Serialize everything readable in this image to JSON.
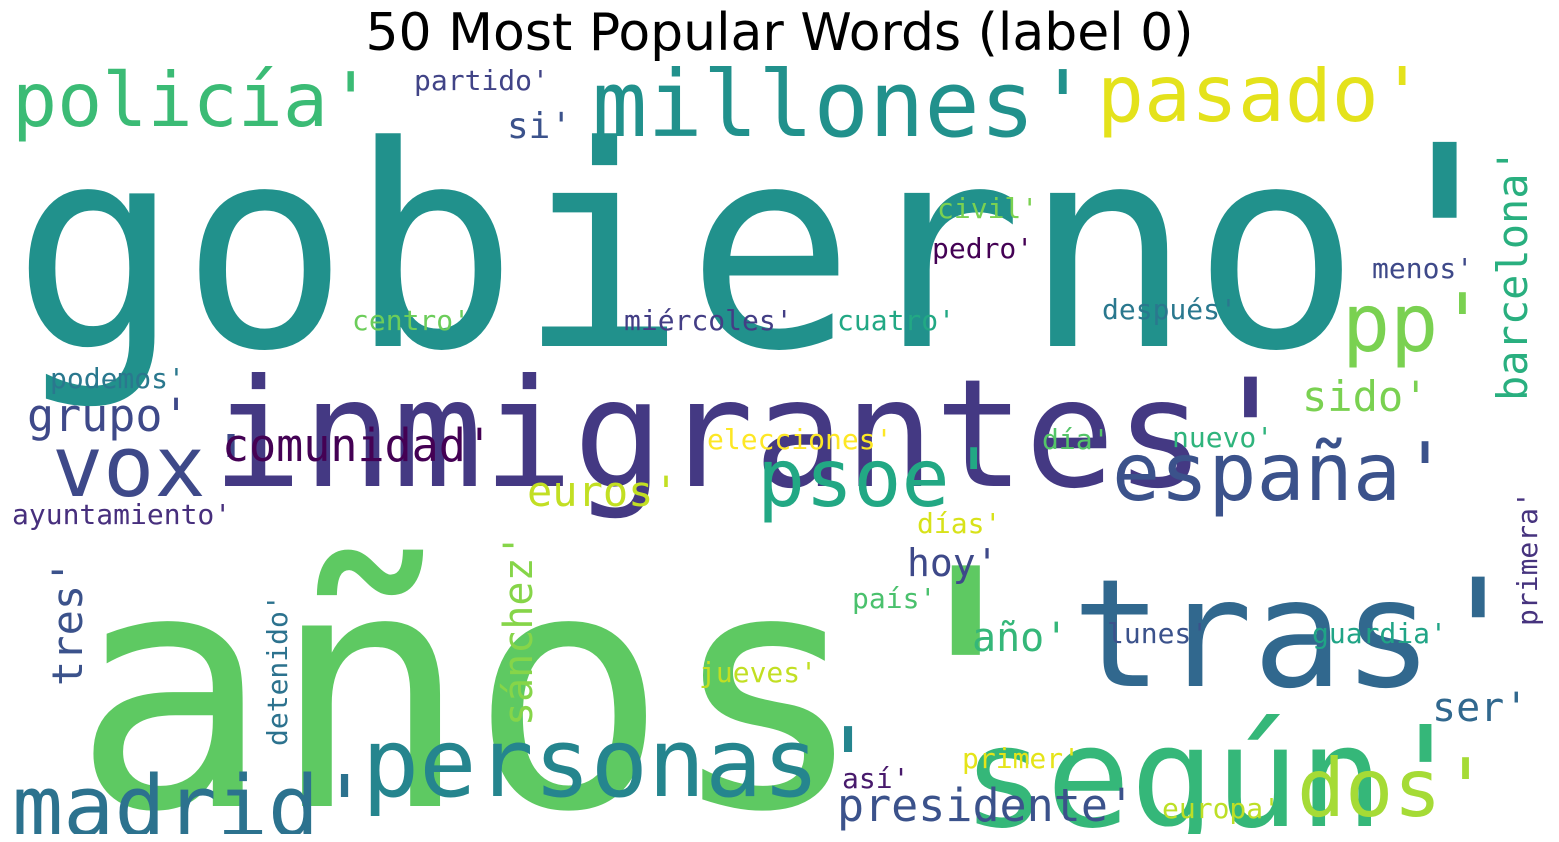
{
  "title": "50 Most Popular Words (label 0)",
  "words": [
    {
      "text": "gobierno'",
      "color": "#21918c"
    },
    {
      "text": "años'",
      "color": "#5ec962"
    },
    {
      "text": "inmigrantes'",
      "color": "#443983"
    },
    {
      "text": "tras'",
      "color": "#31688e"
    },
    {
      "text": "según'",
      "color": "#35b779"
    },
    {
      "text": "millones'",
      "color": "#21918c"
    },
    {
      "text": "personas'",
      "color": "#25858e"
    },
    {
      "text": "madrid'",
      "color": "#2c728e"
    },
    {
      "text": "españa'",
      "color": "#3b528b"
    },
    {
      "text": "pasado'",
      "color": "#e4e21b"
    },
    {
      "text": "policía'",
      "color": "#3bbb75"
    },
    {
      "text": "psoe'",
      "color": "#22a884"
    },
    {
      "text": "vox'",
      "color": "#3e4989"
    },
    {
      "text": "pp'",
      "color": "#7ad151"
    },
    {
      "text": "dos'",
      "color": "#a5db36"
    },
    {
      "text": "comunidad'",
      "color": "#440154"
    },
    {
      "text": "presidente'",
      "color": "#3b528b"
    },
    {
      "text": "barcelona'",
      "color": "#29af7f"
    },
    {
      "text": "grupo'",
      "color": "#3e4989"
    },
    {
      "text": "euros'",
      "color": "#c2df23"
    },
    {
      "text": "sánchez'",
      "color": "#86d549"
    },
    {
      "text": "sido'",
      "color": "#7ad151"
    },
    {
      "text": "tres'",
      "color": "#3b528b"
    },
    {
      "text": "año'",
      "color": "#35b779"
    },
    {
      "text": "hoy'",
      "color": "#3e4989"
    },
    {
      "text": "ser'",
      "color": "#31688e"
    },
    {
      "text": "si'",
      "color": "#3b528b"
    },
    {
      "text": "ayuntamiento'",
      "color": "#472f7d"
    },
    {
      "text": "después'",
      "color": "#2a788e"
    },
    {
      "text": "miércoles'",
      "color": "#433e85"
    },
    {
      "text": "cuatro'",
      "color": "#22a884"
    },
    {
      "text": "centro'",
      "color": "#6ccd5a"
    },
    {
      "text": "podemos'",
      "color": "#2a788e"
    },
    {
      "text": "partido'",
      "color": "#414487"
    },
    {
      "text": "civil'",
      "color": "#7ad151"
    },
    {
      "text": "pedro'",
      "color": "#440154"
    },
    {
      "text": "menos'",
      "color": "#3e4989"
    },
    {
      "text": "elecciones'",
      "color": "#fde725"
    },
    {
      "text": "día'",
      "color": "#54c568"
    },
    {
      "text": "nuevo'",
      "color": "#2fb47c"
    },
    {
      "text": "días'",
      "color": "#d8e219"
    },
    {
      "text": "país'",
      "color": "#4ac16d"
    },
    {
      "text": "lunes'",
      "color": "#3b528b"
    },
    {
      "text": "guardia'",
      "color": "#20a486"
    },
    {
      "text": "jueves'",
      "color": "#c2df23"
    },
    {
      "text": "detenido'",
      "color": "#2c728e"
    },
    {
      "text": "primera'",
      "color": "#46337e"
    },
    {
      "text": "primer'",
      "color": "#e5e419"
    },
    {
      "text": "así'",
      "color": "#481a6c"
    },
    {
      "text": "europa'",
      "color": "#bddf26"
    }
  ]
}
